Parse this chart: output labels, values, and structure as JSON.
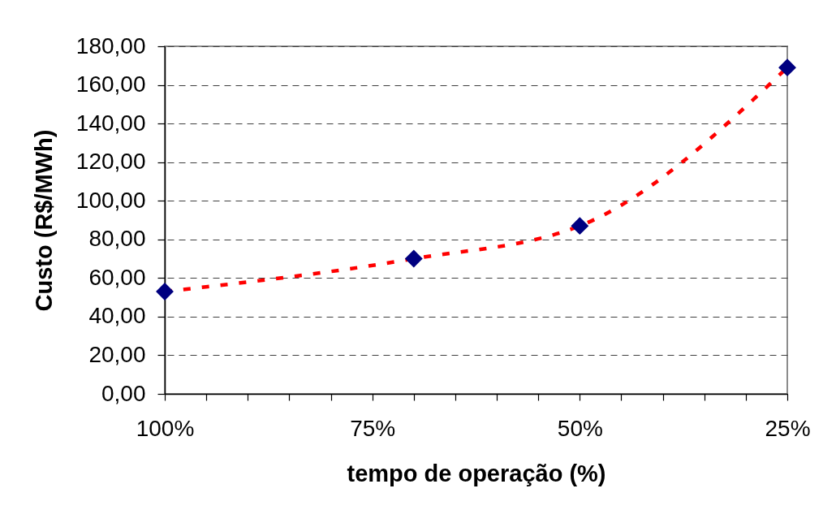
{
  "chart_data": {
    "type": "line",
    "xlabel": "tempo de operação (%)",
    "ylabel": "Custo (R$/MWh)",
    "xlim": [
      100,
      25
    ],
    "ylim": [
      0,
      180
    ],
    "xticks": [
      {
        "value": 100,
        "label": "100%"
      },
      {
        "value": 95,
        "label": null
      },
      {
        "value": 90,
        "label": null
      },
      {
        "value": 85,
        "label": null
      },
      {
        "value": 80,
        "label": null
      },
      {
        "value": 75,
        "label": "75%"
      },
      {
        "value": 70,
        "label": null
      },
      {
        "value": 65,
        "label": null
      },
      {
        "value": 60,
        "label": null
      },
      {
        "value": 55,
        "label": null
      },
      {
        "value": 50,
        "label": "50%"
      },
      {
        "value": 45,
        "label": null
      },
      {
        "value": 40,
        "label": null
      },
      {
        "value": 35,
        "label": null
      },
      {
        "value": 30,
        "label": null
      },
      {
        "value": 25,
        "label": "25%"
      }
    ],
    "yticks": [
      {
        "value": 0,
        "label": "0,00"
      },
      {
        "value": 20,
        "label": "20,00"
      },
      {
        "value": 40,
        "label": "40,00"
      },
      {
        "value": 60,
        "label": "60,00"
      },
      {
        "value": 80,
        "label": "80,00"
      },
      {
        "value": 100,
        "label": "100,00"
      },
      {
        "value": 120,
        "label": "120,00"
      },
      {
        "value": 140,
        "label": "140,00"
      },
      {
        "value": 160,
        "label": "160,00"
      },
      {
        "value": 180,
        "label": "180,00"
      }
    ],
    "grid": "y",
    "x": [
      100,
      70,
      50,
      25
    ],
    "series": [
      {
        "color": "#ff0000",
        "line_style": "dashed",
        "marker": "none",
        "values": [
          53,
          70,
          87,
          169
        ]
      },
      {
        "type": "scatter",
        "color": "#000080",
        "marker": "diamond",
        "values": [
          53,
          70,
          87,
          169
        ]
      }
    ]
  }
}
